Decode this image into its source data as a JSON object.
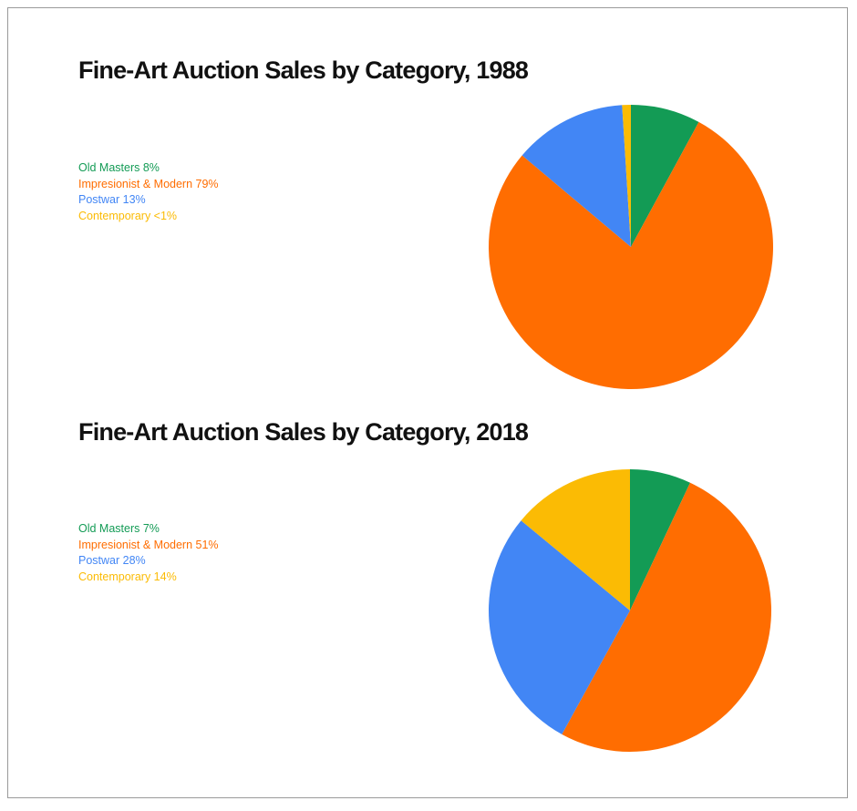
{
  "chart_data": [
    {
      "type": "pie",
      "title": "Fine-Art Auction Sales by Category, 1988",
      "categories": [
        "Old Masters",
        "Impresionist & Modern",
        "Postwar",
        "Contemporary"
      ],
      "values": [
        8,
        79,
        13,
        1
      ],
      "legend_labels": [
        "Old Masters 8%",
        "Impresionist & Modern 79%",
        "Postwar 13%",
        "Contemporary <1%"
      ],
      "colors": [
        "#139b55",
        "#ff6d01",
        "#4286f5",
        "#fbbb04"
      ],
      "legend_position": "left"
    },
    {
      "type": "pie",
      "title": "Fine-Art Auction Sales by Category, 2018",
      "categories": [
        "Old Masters",
        "Impresionist & Modern",
        "Postwar",
        "Contemporary"
      ],
      "values": [
        7,
        51,
        28,
        14
      ],
      "legend_labels": [
        "Old Masters 7%",
        "Impresionist & Modern 51%",
        "Postwar 28%",
        "Contemporary 14%"
      ],
      "colors": [
        "#139b55",
        "#ff6d01",
        "#4286f5",
        "#fbbb04"
      ],
      "legend_position": "left"
    }
  ]
}
